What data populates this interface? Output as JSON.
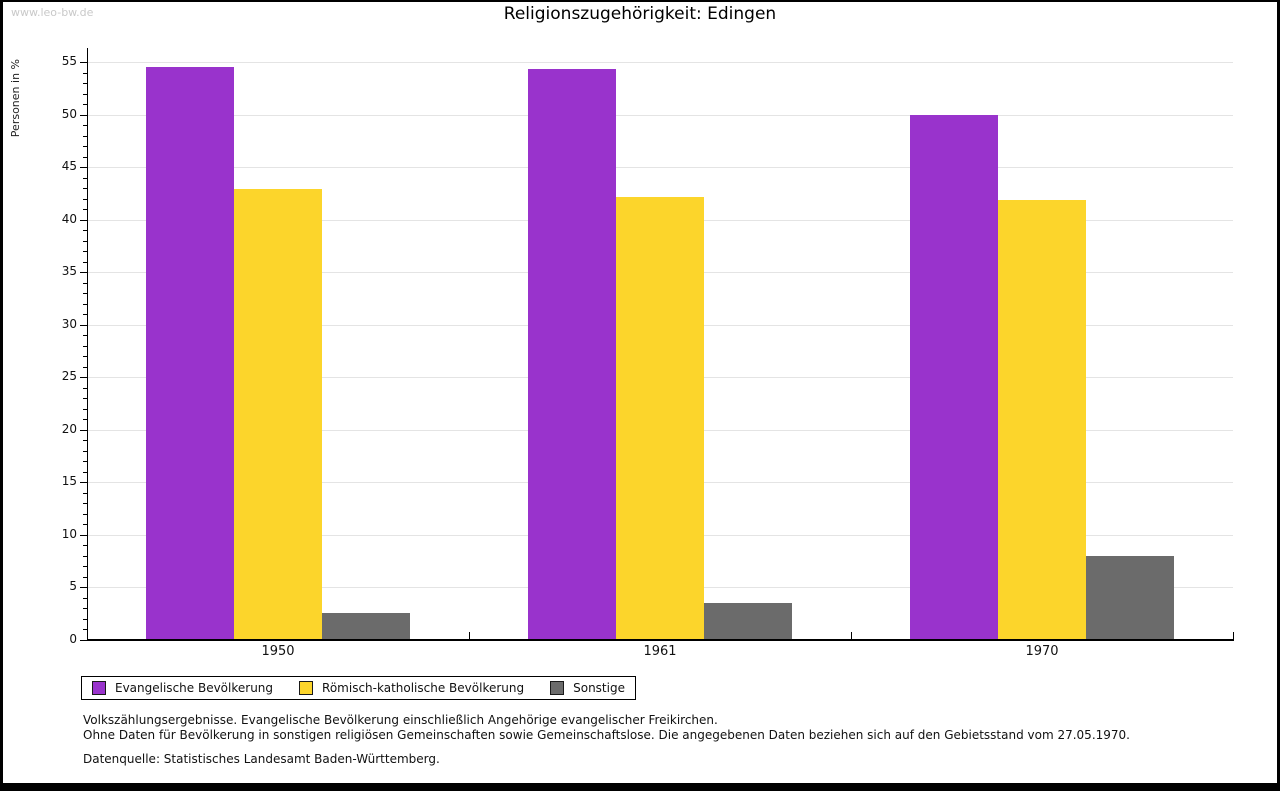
{
  "watermark": "www.leo-bw.de",
  "title": "Religionszugehörigkeit: Edingen",
  "chart_data": {
    "type": "bar",
    "title": "Religionszugehörigkeit: Edingen",
    "xlabel": "",
    "ylabel": "Personen in %",
    "ylim": [
      0,
      55
    ],
    "y_major_step": 5,
    "y_minor_step": 1,
    "grid": true,
    "legend_position": "bottom",
    "categories": [
      "1950",
      "1961",
      "1970"
    ],
    "series": [
      {
        "name": "Evangelische Bevölkerung",
        "color": "#9933CC",
        "values": [
          54.5,
          54.3,
          50.0
        ]
      },
      {
        "name": "Römisch-katholische Bevölkerung",
        "color": "#FCD52B",
        "values": [
          42.9,
          42.2,
          41.9
        ]
      },
      {
        "name": "Sonstige",
        "color": "#6B6B6B",
        "values": [
          2.6,
          3.5,
          8.0
        ]
      }
    ]
  },
  "footnotes": [
    "Volkszählungsergebnisse. Evangelische Bevölkerung einschließlich Angehörige evangelischer Freikirchen.",
    "Ohne Daten für Bevölkerung in sonstigen religiösen Gemeinschaften sowie Gemeinschaftslose. Die angegebenen Daten beziehen sich auf den Gebietsstand vom 27.05.1970."
  ],
  "source": "Datenquelle: Statistisches Landesamt Baden-Württemberg."
}
